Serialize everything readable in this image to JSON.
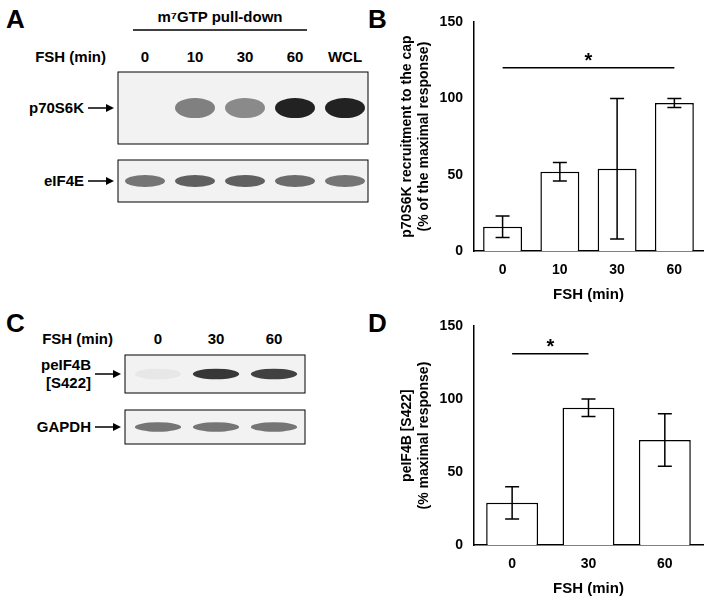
{
  "blots": [
    {
      "panel": "A",
      "header": "m⁷GTP pull-down",
      "lane_title": "FSH (min)",
      "lanes": [
        "0",
        "10",
        "30",
        "60",
        "WCL"
      ],
      "rows": [
        {
          "name": "p70S6K",
          "band_intensity": [
            0,
            0.55,
            0.5,
            1,
            1
          ]
        },
        {
          "name": "eIF4E",
          "band_intensity": [
            0.6,
            0.7,
            0.7,
            0.65,
            0.6
          ]
        }
      ]
    },
    {
      "panel": "C",
      "lane_title": "FSH (min)",
      "lanes": [
        "0",
        "30",
        "60"
      ],
      "rows": [
        {
          "name": "peIF4B\n[S422]",
          "band_intensity": [
            0.05,
            0.9,
            0.85
          ]
        },
        {
          "name": "GAPDH",
          "band_intensity": [
            0.6,
            0.6,
            0.6
          ]
        }
      ]
    }
  ],
  "chart_data": [
    {
      "panel": "B",
      "type": "bar",
      "categories": [
        "0",
        "10",
        "30",
        "60"
      ],
      "values": [
        16,
        52,
        54,
        97
      ],
      "errors": [
        7,
        6,
        46,
        3
      ],
      "color": "#ffffff",
      "x_label": "FSH (min)",
      "y_label": "p70S6K recruitment to the cap\n(% of the maximal response)",
      "ylim": [
        0,
        150
      ],
      "yticks": [
        0,
        50,
        100,
        150
      ],
      "grid": false,
      "annotations": [
        {
          "text": "*",
          "from": "0",
          "to": "60",
          "y": 120
        }
      ]
    },
    {
      "panel": "D",
      "type": "bar",
      "categories": [
        "0",
        "30",
        "60"
      ],
      "values": [
        29,
        94,
        72
      ],
      "errors": [
        11,
        6,
        18
      ],
      "color": "#ffffff",
      "x_label": "FSH (min)",
      "y_label": "peIF4B [S422]\n(% maximal response)",
      "ylim": [
        0,
        150
      ],
      "yticks": [
        0,
        50,
        100,
        150
      ],
      "grid": false,
      "annotations": [
        {
          "text": "*",
          "from": "0",
          "to": "30",
          "y": 131
        }
      ]
    }
  ]
}
